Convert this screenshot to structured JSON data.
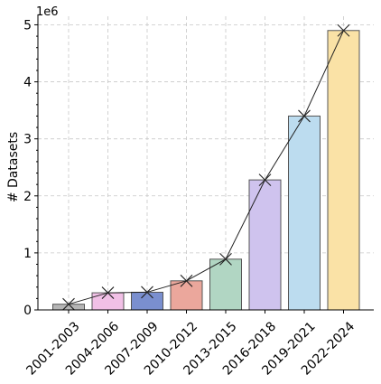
{
  "chart_data": {
    "type": "bar",
    "categories": [
      "2001-2003",
      "2004-2006",
      "2007-2009",
      "2010-2012",
      "2013-2015",
      "2016-2018",
      "2019-2021",
      "2022-2024"
    ],
    "values": [
      100000,
      300000,
      310000,
      510000,
      890000,
      2280000,
      3400000,
      4900000
    ],
    "bar_colors": [
      "#b5b5b5",
      "#f1c0e6",
      "#7a8fcf",
      "#eba79c",
      "#b1d6c3",
      "#cfc3ee",
      "#bcdcef",
      "#fae2a6"
    ],
    "ylabel": "# Datasets",
    "y_offset_label": "1e6",
    "yticks": [
      0,
      1000000,
      2000000,
      3000000,
      4000000,
      5000000
    ],
    "ytick_labels": [
      "0",
      "1",
      "2",
      "3",
      "4",
      "5"
    ],
    "ylim": [
      0,
      5150000
    ],
    "grid": true,
    "trend_line": true,
    "marker": "x"
  }
}
